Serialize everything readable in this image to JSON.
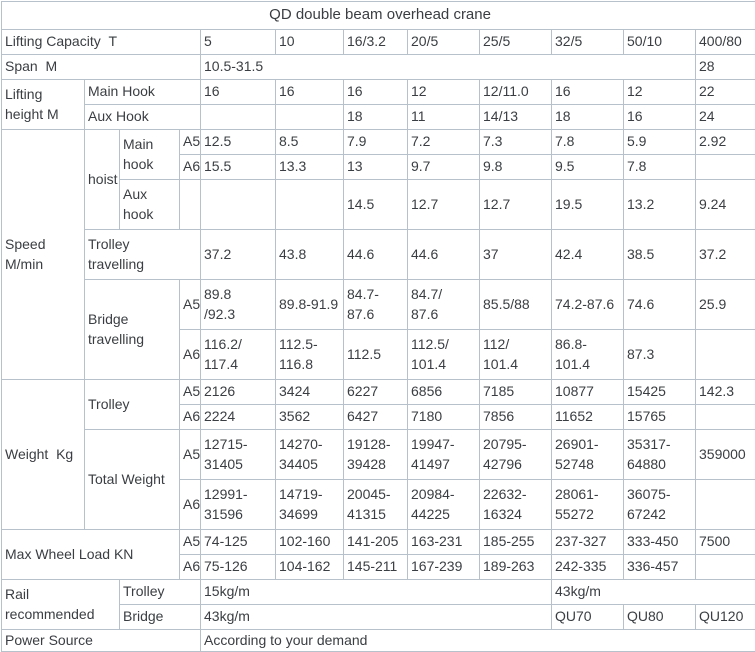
{
  "colors": {
    "border": "#b7c1cc",
    "text": "#3a3e42",
    "background": "#ffffff"
  },
  "table": {
    "columns": [
      83,
      35,
      60,
      21,
      75,
      68,
      64,
      72,
      72,
      72,
      72,
      61
    ],
    "rows": [
      {
        "h": 28,
        "cells": [
          {
            "text": "QD double beam overhead crane",
            "colspan": 12,
            "align": "center",
            "name": "table-title"
          }
        ]
      },
      {
        "h": 25,
        "cells": [
          {
            "text": "Lifting Capacity  T",
            "colspan": 4,
            "name": "row-label-lifting-capacity"
          },
          {
            "text": "5",
            "name": "capacity-column-header"
          },
          {
            "text": "10",
            "name": "capacity-column-header"
          },
          {
            "text": "16/3.2",
            "name": "capacity-column-header"
          },
          {
            "text": "20/5",
            "name": "capacity-column-header"
          },
          {
            "text": "25/5",
            "name": "capacity-column-header"
          },
          {
            "text": "32/5",
            "name": "capacity-column-header"
          },
          {
            "text": "50/10",
            "name": "capacity-column-header"
          },
          {
            "text": "400/80",
            "name": "capacity-column-header"
          }
        ]
      },
      {
        "h": 25,
        "cells": [
          {
            "text": "Span  M",
            "colspan": 4,
            "name": "row-label-span"
          },
          {
            "text": "10.5-31.5",
            "colspan": 7,
            "name": "spec-value"
          },
          {
            "text": "28",
            "name": "spec-value"
          }
        ]
      },
      {
        "h": 25,
        "cells": [
          {
            "text": "Lifting\nheight M",
            "rowspan": 2,
            "name": "row-label-lifting-height"
          },
          {
            "text": "Main Hook",
            "colspan": 3,
            "name": "row-label-main-hook"
          },
          {
            "text": "16",
            "name": "spec-value"
          },
          {
            "text": "16",
            "name": "spec-value"
          },
          {
            "text": "16",
            "name": "spec-value"
          },
          {
            "text": "12",
            "name": "spec-value"
          },
          {
            "text": "12/11.0",
            "name": "spec-value"
          },
          {
            "text": "16",
            "name": "spec-value"
          },
          {
            "text": "12",
            "name": "spec-value"
          },
          {
            "text": "22",
            "name": "spec-value"
          }
        ]
      },
      {
        "h": 25,
        "cells": [
          {
            "text": "Aux Hook",
            "colspan": 3,
            "name": "row-label-aux-hook"
          },
          {
            "text": "",
            "name": "empty-cell"
          },
          {
            "text": "",
            "name": "empty-cell"
          },
          {
            "text": "18",
            "name": "spec-value"
          },
          {
            "text": "11",
            "name": "spec-value"
          },
          {
            "text": "14/13",
            "name": "spec-value"
          },
          {
            "text": "18",
            "name": "spec-value"
          },
          {
            "text": "16",
            "name": "spec-value"
          },
          {
            "text": "24",
            "name": "spec-value"
          }
        ]
      },
      {
        "h": 25,
        "cells": [
          {
            "text": "Speed\nM/min",
            "rowspan": 6,
            "name": "row-label-speed"
          },
          {
            "text": "hoist",
            "rowspan": 3,
            "name": "row-label-hoist"
          },
          {
            "text": "Main\nhook",
            "rowspan": 2,
            "name": "row-label-hoist-main-hook"
          },
          {
            "text": "A5",
            "name": "duty-class-a5"
          },
          {
            "text": "12.5",
            "name": "spec-value"
          },
          {
            "text": "8.5",
            "name": "spec-value"
          },
          {
            "text": "7.9",
            "name": "spec-value"
          },
          {
            "text": "7.2",
            "name": "spec-value"
          },
          {
            "text": "7.3",
            "name": "spec-value"
          },
          {
            "text": "7.8",
            "name": "spec-value"
          },
          {
            "text": "5.9",
            "name": "spec-value"
          },
          {
            "text": "2.92",
            "name": "spec-value"
          }
        ]
      },
      {
        "h": 25,
        "cells": [
          {
            "text": "A6",
            "name": "duty-class-a6"
          },
          {
            "text": "15.5",
            "name": "spec-value"
          },
          {
            "text": "13.3",
            "name": "spec-value"
          },
          {
            "text": "13",
            "name": "spec-value"
          },
          {
            "text": "9.7",
            "name": "spec-value"
          },
          {
            "text": "9.8",
            "name": "spec-value"
          },
          {
            "text": "9.5",
            "name": "spec-value"
          },
          {
            "text": "7.8",
            "name": "spec-value"
          },
          {
            "text": "",
            "name": "empty-cell"
          }
        ]
      },
      {
        "h": 50,
        "cells": [
          {
            "text": "Aux\nhook",
            "name": "row-label-hoist-aux-hook"
          },
          {
            "text": "",
            "name": "empty-cell"
          },
          {
            "text": "",
            "name": "empty-cell"
          },
          {
            "text": "",
            "name": "empty-cell"
          },
          {
            "text": "14.5",
            "name": "spec-value"
          },
          {
            "text": "12.7",
            "name": "spec-value"
          },
          {
            "text": "12.7",
            "name": "spec-value"
          },
          {
            "text": "19.5",
            "name": "spec-value"
          },
          {
            "text": "13.2",
            "name": "spec-value"
          },
          {
            "text": "9.24",
            "name": "spec-value"
          }
        ]
      },
      {
        "h": 50,
        "cells": [
          {
            "text": "Trolley\ntravelling",
            "colspan": 3,
            "name": "row-label-trolley-travelling"
          },
          {
            "text": "37.2",
            "name": "spec-value"
          },
          {
            "text": "43.8",
            "name": "spec-value"
          },
          {
            "text": "44.6",
            "name": "spec-value"
          },
          {
            "text": "44.6",
            "name": "spec-value"
          },
          {
            "text": "37",
            "name": "spec-value"
          },
          {
            "text": "42.4",
            "name": "spec-value"
          },
          {
            "text": "38.5",
            "name": "spec-value"
          },
          {
            "text": "37.2",
            "name": "spec-value"
          }
        ]
      },
      {
        "h": 50,
        "cells": [
          {
            "text": "Bridge\ntravelling",
            "colspan": 2,
            "rowspan": 2,
            "name": "row-label-bridge-travelling"
          },
          {
            "text": "A5",
            "name": "duty-class-a5"
          },
          {
            "text": "89.8\n/92.3",
            "name": "spec-value"
          },
          {
            "text": "89.8-91.9",
            "name": "spec-value"
          },
          {
            "text": "84.7-87.6",
            "name": "spec-value"
          },
          {
            "text": "84.7/\n87.6",
            "name": "spec-value"
          },
          {
            "text": "85.5/88",
            "name": "spec-value"
          },
          {
            "text": "74.2-87.6",
            "name": "spec-value"
          },
          {
            "text": "74.6",
            "name": "spec-value"
          },
          {
            "text": "25.9",
            "name": "spec-value"
          }
        ]
      },
      {
        "h": 50,
        "cells": [
          {
            "text": "A6",
            "name": "duty-class-a6"
          },
          {
            "text": "116.2/\n117.4",
            "name": "spec-value"
          },
          {
            "text": "112.5-\n116.8",
            "name": "spec-value"
          },
          {
            "text": "112.5",
            "name": "spec-value"
          },
          {
            "text": "112.5/\n101.4",
            "name": "spec-value"
          },
          {
            "text": "112/\n101.4",
            "name": "spec-value"
          },
          {
            "text": "86.8-\n101.4",
            "name": "spec-value"
          },
          {
            "text": "87.3",
            "name": "spec-value"
          },
          {
            "text": "",
            "name": "empty-cell"
          }
        ]
      },
      {
        "h": 25,
        "cells": [
          {
            "text": "Weight  Kg",
            "rowspan": 4,
            "name": "row-label-weight"
          },
          {
            "text": "Trolley",
            "colspan": 2,
            "rowspan": 2,
            "name": "row-label-weight-trolley"
          },
          {
            "text": "A5",
            "name": "duty-class-a5"
          },
          {
            "text": "2126",
            "name": "spec-value"
          },
          {
            "text": "3424",
            "name": "spec-value"
          },
          {
            "text": "6227",
            "name": "spec-value"
          },
          {
            "text": "6856",
            "name": "spec-value"
          },
          {
            "text": "7185",
            "name": "spec-value"
          },
          {
            "text": "10877",
            "name": "spec-value"
          },
          {
            "text": "15425",
            "name": "spec-value"
          },
          {
            "text": "142.3",
            "name": "spec-value"
          }
        ]
      },
      {
        "h": 25,
        "cells": [
          {
            "text": "A6",
            "name": "duty-class-a6"
          },
          {
            "text": "2224",
            "name": "spec-value"
          },
          {
            "text": "3562",
            "name": "spec-value"
          },
          {
            "text": "6427",
            "name": "spec-value"
          },
          {
            "text": "7180",
            "name": "spec-value"
          },
          {
            "text": "7856",
            "name": "spec-value"
          },
          {
            "text": "11652",
            "name": "spec-value"
          },
          {
            "text": "15765",
            "name": "spec-value"
          },
          {
            "text": "",
            "name": "empty-cell"
          }
        ]
      },
      {
        "h": 50,
        "cells": [
          {
            "text": "Total Weight",
            "colspan": 2,
            "rowspan": 2,
            "name": "row-label-total-weight"
          },
          {
            "text": "A5",
            "name": "duty-class-a5"
          },
          {
            "text": "12715-\n31405",
            "name": "spec-value"
          },
          {
            "text": "14270-\n34405",
            "name": "spec-value"
          },
          {
            "text": "19128-\n39428",
            "name": "spec-value"
          },
          {
            "text": "19947-\n41497",
            "name": "spec-value"
          },
          {
            "text": "20795-\n42796",
            "name": "spec-value"
          },
          {
            "text": "26901-\n52748",
            "name": "spec-value"
          },
          {
            "text": "35317-\n64880",
            "name": "spec-value"
          },
          {
            "text": "359000",
            "name": "spec-value"
          }
        ]
      },
      {
        "h": 50,
        "cells": [
          {
            "text": "A6",
            "name": "duty-class-a6"
          },
          {
            "text": "12991-\n31596",
            "name": "spec-value"
          },
          {
            "text": "14719-\n34699",
            "name": "spec-value"
          },
          {
            "text": "20045-\n41315",
            "name": "spec-value"
          },
          {
            "text": "20984-\n44225",
            "name": "spec-value"
          },
          {
            "text": "22632-\n16324",
            "name": "spec-value"
          },
          {
            "text": "28061-\n55272",
            "name": "spec-value"
          },
          {
            "text": "36075-\n67242",
            "name": "spec-value"
          },
          {
            "text": "",
            "name": "empty-cell"
          }
        ]
      },
      {
        "h": 25,
        "cells": [
          {
            "text": "Max Wheel Load KN",
            "colspan": 3,
            "rowspan": 2,
            "name": "row-label-max-wheel-load"
          },
          {
            "text": "A5",
            "name": "duty-class-a5"
          },
          {
            "text": "74-125",
            "name": "spec-value"
          },
          {
            "text": "102-160",
            "name": "spec-value"
          },
          {
            "text": "141-205",
            "name": "spec-value"
          },
          {
            "text": "163-231",
            "name": "spec-value"
          },
          {
            "text": "185-255",
            "name": "spec-value"
          },
          {
            "text": "237-327",
            "name": "spec-value"
          },
          {
            "text": "333-450",
            "name": "spec-value"
          },
          {
            "text": "7500",
            "name": "spec-value"
          }
        ]
      },
      {
        "h": 25,
        "cells": [
          {
            "text": "A6",
            "name": "duty-class-a6"
          },
          {
            "text": "75-126",
            "name": "spec-value"
          },
          {
            "text": "104-162",
            "name": "spec-value"
          },
          {
            "text": "145-211",
            "name": "spec-value"
          },
          {
            "text": "167-239",
            "name": "spec-value"
          },
          {
            "text": "189-263",
            "name": "spec-value"
          },
          {
            "text": "242-335",
            "name": "spec-value"
          },
          {
            "text": "336-457",
            "name": "spec-value"
          },
          {
            "text": "",
            "name": "empty-cell"
          }
        ]
      },
      {
        "h": 25,
        "cells": [
          {
            "text": "Rail\nrecommended",
            "colspan": 2,
            "rowspan": 2,
            "name": "row-label-rail-recommended"
          },
          {
            "text": "Trolley",
            "colspan": 2,
            "name": "row-label-rail-trolley"
          },
          {
            "text": "15kg/m",
            "colspan": 5,
            "name": "spec-value"
          },
          {
            "text": "43kg/m",
            "colspan": 3,
            "name": "spec-value"
          }
        ]
      },
      {
        "h": 25,
        "cells": [
          {
            "text": "Bridge",
            "colspan": 2,
            "name": "row-label-rail-bridge"
          },
          {
            "text": "43kg/m",
            "colspan": 5,
            "name": "spec-value"
          },
          {
            "text": "QU70",
            "name": "spec-value"
          },
          {
            "text": "QU80",
            "name": "spec-value"
          },
          {
            "text": "QU120",
            "name": "spec-value"
          }
        ]
      },
      {
        "h": 22,
        "cells": [
          {
            "text": "Power Source",
            "colspan": 4,
            "name": "row-label-power-source"
          },
          {
            "text": "According to your demand",
            "colspan": 8,
            "name": "spec-value"
          }
        ]
      }
    ]
  }
}
